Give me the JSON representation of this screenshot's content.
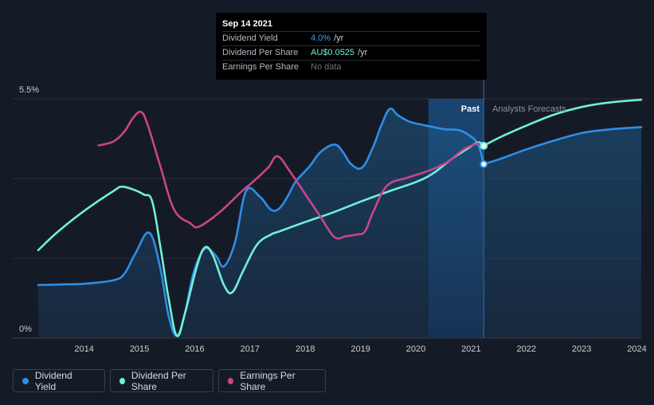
{
  "tooltip": {
    "date": "Sep 14 2021",
    "rows": [
      {
        "label": "Dividend Yield",
        "value": "4.0%",
        "unit": "/yr"
      },
      {
        "label": "Dividend Per Share",
        "value": "AU$0.0525",
        "unit": "/yr"
      },
      {
        "label": "Earnings Per Share",
        "value": "No data",
        "unit": ""
      }
    ]
  },
  "regions": {
    "past": "Past",
    "forecast": "Analysts Forecasts"
  },
  "legend": [
    {
      "label": "Dividend Yield",
      "color": "#2f8ee5"
    },
    {
      "label": "Dividend Per Share",
      "color": "#6ff0d9"
    },
    {
      "label": "Earnings Per Share",
      "color": "#c9458a"
    }
  ],
  "chart_data": {
    "type": "line",
    "title": "",
    "xlabel": "",
    "ylabel": "",
    "ylim": [
      0,
      5.5
    ],
    "y_tick_labels": [
      "0%",
      "5.5%"
    ],
    "y_tick_values": [
      0,
      5.5
    ],
    "x_ticks": [
      "2014",
      "2015",
      "2016",
      "2017",
      "2018",
      "2019",
      "2020",
      "2021",
      "2022",
      "2023",
      "2024"
    ],
    "xlim": [
      2013.64,
      2024.55
    ],
    "past_highlight_start": 2020.7,
    "current_date": 2021.7,
    "series": [
      {
        "name": "Dividend Yield",
        "color": "#2f8ee5",
        "area": true,
        "x": [
          2013.64,
          2014.0,
          2014.5,
          2015.0,
          2015.2,
          2015.4,
          2015.65,
          2015.85,
          2016.0,
          2016.15,
          2016.3,
          2016.45,
          2016.65,
          2016.85,
          2017.0,
          2017.2,
          2017.4,
          2017.65,
          2017.85,
          2018.0,
          2018.15,
          2018.3,
          2018.55,
          2018.75,
          2019.0,
          2019.15,
          2019.3,
          2019.5,
          2019.7,
          2019.85,
          2020.0,
          2020.15,
          2020.35,
          2020.6,
          2020.8,
          2021.0,
          2021.25,
          2021.45,
          2021.6,
          2021.7
        ],
        "y": [
          1.22,
          1.23,
          1.25,
          1.33,
          1.48,
          1.95,
          2.42,
          1.6,
          0.5,
          0.05,
          0.6,
          1.5,
          2.05,
          1.9,
          1.65,
          2.2,
          3.38,
          3.25,
          2.95,
          2.98,
          3.25,
          3.6,
          3.95,
          4.28,
          4.45,
          4.28,
          4.0,
          3.92,
          4.4,
          4.9,
          5.27,
          5.12,
          4.98,
          4.9,
          4.85,
          4.8,
          4.78,
          4.65,
          4.45,
          4.0
        ]
      },
      {
        "name": "Dividend Yield (forecast)",
        "color": "#2f8ee5",
        "area": true,
        "forecast": true,
        "x": [
          2021.7,
          2022.0,
          2022.5,
          2023.0,
          2023.5,
          2024.0,
          2024.55
        ],
        "y": [
          4.0,
          4.12,
          4.35,
          4.55,
          4.72,
          4.8,
          4.85
        ]
      },
      {
        "name": "Dividend Per Share",
        "color": "#6ff0d9",
        "x": [
          2013.64,
          2014.0,
          2014.5,
          2015.0,
          2015.15,
          2015.35,
          2015.55,
          2015.7,
          2015.85,
          2016.0,
          2016.15,
          2016.3,
          2016.5,
          2016.65,
          2016.8,
          2017.0,
          2017.15,
          2017.35,
          2017.6,
          2017.85,
          2018.0,
          2018.5,
          2019.0,
          2019.5,
          2020.0,
          2020.5,
          2020.8,
          2021.1,
          2021.4,
          2021.6,
          2021.7
        ],
        "y": [
          2.02,
          2.45,
          2.95,
          3.38,
          3.48,
          3.42,
          3.3,
          3.15,
          2.1,
          0.9,
          0.05,
          0.6,
          1.6,
          2.08,
          1.9,
          1.22,
          1.05,
          1.55,
          2.15,
          2.38,
          2.45,
          2.68,
          2.9,
          3.15,
          3.38,
          3.6,
          3.8,
          4.1,
          4.35,
          4.5,
          4.42
        ]
      },
      {
        "name": "Dividend Per Share (forecast)",
        "color": "#6ff0d9",
        "forecast": true,
        "x": [
          2021.7,
          2022.0,
          2022.5,
          2023.0,
          2023.5,
          2024.0,
          2024.55
        ],
        "y": [
          4.42,
          4.62,
          4.9,
          5.15,
          5.32,
          5.42,
          5.48
        ]
      },
      {
        "name": "Earnings Per Share",
        "color": "#c9458a",
        "x": [
          2014.73,
          2015.0,
          2015.2,
          2015.35,
          2015.5,
          2015.62,
          2015.85,
          2016.1,
          2016.4,
          2016.52,
          2016.75,
          2017.0,
          2017.3,
          2017.55,
          2017.8,
          2017.97,
          2018.2,
          2018.45,
          2018.75,
          2019.0,
          2019.2,
          2019.4,
          2019.55,
          2019.7,
          2019.95,
          2020.3,
          2020.6,
          2020.9,
          2021.1,
          2021.35,
          2021.6
        ],
        "y": [
          4.43,
          4.52,
          4.75,
          5.05,
          5.2,
          4.9,
          3.95,
          2.95,
          2.63,
          2.55,
          2.72,
          2.98,
          3.35,
          3.62,
          3.92,
          4.18,
          3.82,
          3.35,
          2.78,
          2.32,
          2.34,
          2.38,
          2.45,
          2.9,
          3.5,
          3.68,
          3.8,
          3.95,
          4.1,
          4.35,
          4.48
        ]
      }
    ]
  }
}
